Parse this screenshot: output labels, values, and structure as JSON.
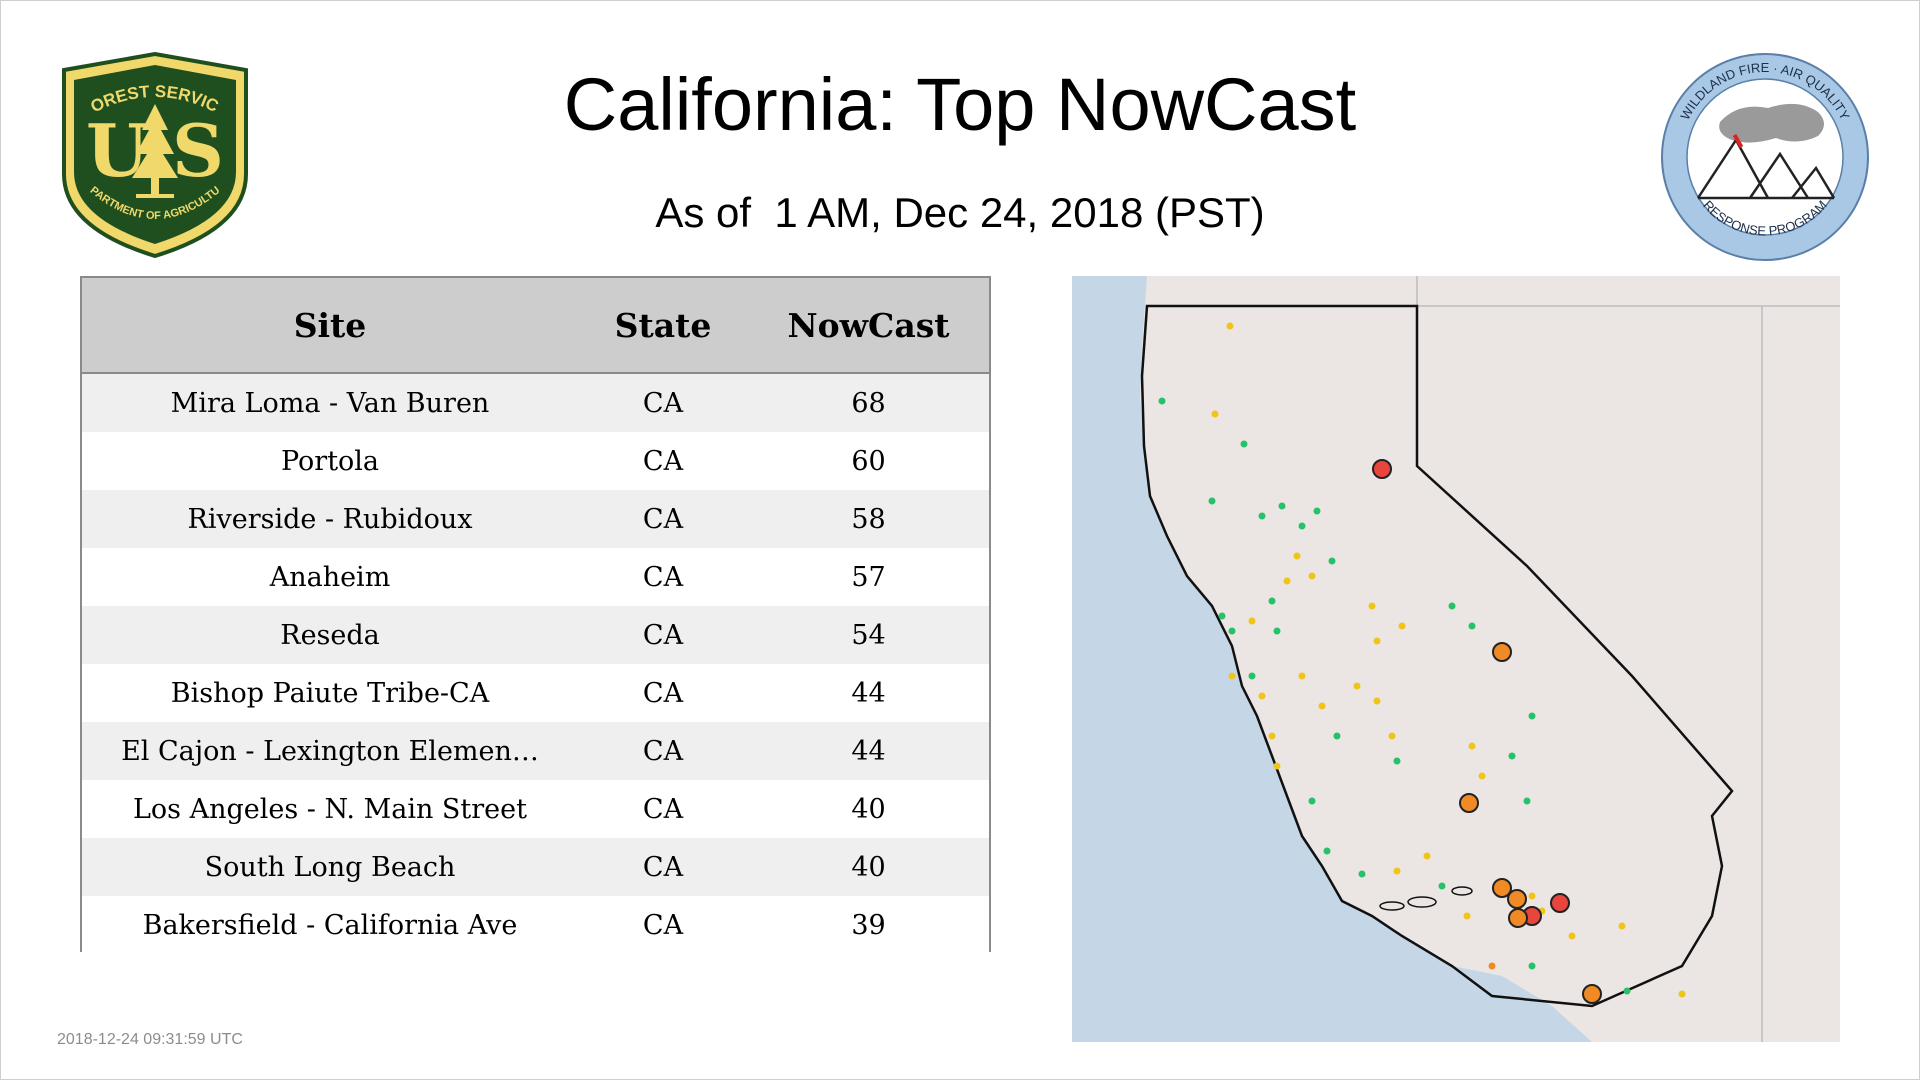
{
  "header": {
    "title": "California: Top NowCast",
    "subtitle": "As of  1 AM, Dec 24, 2018 (PST)"
  },
  "logos": {
    "left": {
      "name": "shield-logo",
      "top_text": "FOREST SERVICE",
      "letters": "US",
      "bottom_text": "DEPARTMENT OF AGRICULTURE",
      "colors": {
        "green": "#1f4f1f",
        "yellow": "#f0d86a"
      }
    },
    "right": {
      "name": "seal-logo",
      "top_text": "WILDLAND FIRE · AIR QUALITY",
      "bottom_text": "RESPONSE PROGRAM",
      "colors": {
        "ring": "#a8c8e6",
        "smoke": "#9a9a9a"
      }
    }
  },
  "table": {
    "headers": {
      "site": "Site",
      "state": "State",
      "nowcast": "NowCast"
    },
    "rows": [
      {
        "site": "Mira Loma - Van Buren",
        "state": "CA",
        "nowcast": "68"
      },
      {
        "site": "Portola",
        "state": "CA",
        "nowcast": "60"
      },
      {
        "site": "Riverside - Rubidoux",
        "state": "CA",
        "nowcast": "58"
      },
      {
        "site": "Anaheim",
        "state": "CA",
        "nowcast": "57"
      },
      {
        "site": "Reseda",
        "state": "CA",
        "nowcast": "54"
      },
      {
        "site": "Bishop Paiute Tribe-CA",
        "state": "CA",
        "nowcast": "44"
      },
      {
        "site": "El Cajon - Lexington Elemen…",
        "state": "CA",
        "nowcast": "44"
      },
      {
        "site": "Los Angeles - N. Main Street",
        "state": "CA",
        "nowcast": "40"
      },
      {
        "site": "South Long Beach",
        "state": "CA",
        "nowcast": "40"
      },
      {
        "site": "Bakersfield - California Ave",
        "state": "CA",
        "nowcast": "39"
      }
    ]
  },
  "map": {
    "colors": {
      "ocean": "#c5d6e6",
      "land": "#ebe6e4",
      "border": "#111111",
      "good": "#25c269",
      "moderate": "#f0c419",
      "usg": "#f08a24",
      "unhealthy": "#e8453c"
    }
  },
  "footer": {
    "timestamp": "2018-12-24 09:31:59 UTC"
  }
}
